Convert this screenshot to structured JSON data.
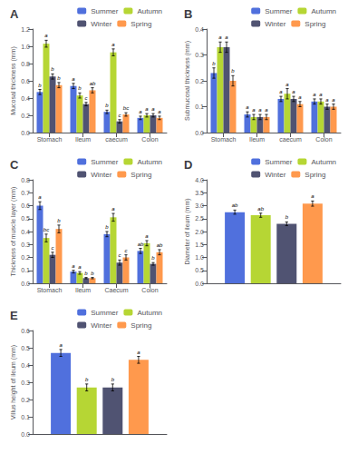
{
  "chart_data": [
    {
      "type": "bar",
      "title": "A",
      "y_label": "Mucosal thickness (mm)",
      "categories": [
        "Stomach",
        "Ileum",
        "caecum",
        "Colon"
      ],
      "series": [
        {
          "name": "Summer",
          "values": [
            0.47,
            0.54,
            0.24,
            0.17
          ],
          "errors": [
            0.03,
            0.03,
            0.02,
            0.02
          ],
          "letters": [
            "b",
            "a",
            "b",
            "a"
          ]
        },
        {
          "name": "Autumn",
          "values": [
            1.03,
            0.43,
            0.93,
            0.2
          ],
          "errors": [
            0.04,
            0.03,
            0.04,
            0.02
          ],
          "letters": [
            "a",
            "b",
            "a",
            "a"
          ]
        },
        {
          "name": "Winter",
          "values": [
            0.65,
            0.33,
            0.13,
            0.2
          ],
          "errors": [
            0.03,
            0.02,
            0.02,
            0.02
          ],
          "letters": [
            "b",
            "c",
            "c",
            "a"
          ]
        },
        {
          "name": "Spring",
          "values": [
            0.55,
            0.49,
            0.21,
            0.17
          ],
          "errors": [
            0.03,
            0.03,
            0.02,
            0.02
          ],
          "letters": [
            "b",
            "ab",
            "bc",
            "a"
          ]
        }
      ],
      "ylim": [
        0,
        1.2
      ],
      "yticks": [
        {
          "value": 0,
          "label": "0.0"
        },
        0.2,
        0.4,
        0.6,
        0.8,
        {
          "value": 1,
          "label": "1.0"
        },
        1.2
      ],
      "grid": false,
      "legend": "upper right"
    },
    {
      "type": "bar",
      "title": "B",
      "y_label": "Submucosal thickness (mm)",
      "categories": [
        "Stomach",
        "Ileum",
        "caecum",
        "Colon"
      ],
      "series": [
        {
          "name": "Summer",
          "values": [
            0.23,
            0.07,
            0.13,
            0.12
          ],
          "errors": [
            0.02,
            0.01,
            0.01,
            0.01
          ],
          "letters": [
            "b",
            "a",
            "a",
            "a"
          ]
        },
        {
          "name": "Autumn",
          "values": [
            0.33,
            0.06,
            0.15,
            0.12
          ],
          "errors": [
            0.02,
            0.01,
            0.02,
            0.01
          ],
          "letters": [
            "a",
            "a",
            "a",
            "a"
          ]
        },
        {
          "name": "Winter",
          "values": [
            0.33,
            0.06,
            0.13,
            0.1
          ],
          "errors": [
            0.02,
            0.01,
            0.01,
            0.01
          ],
          "letters": [
            "a",
            "a",
            "a",
            "a"
          ]
        },
        {
          "name": "Spring",
          "values": [
            0.2,
            0.06,
            0.11,
            0.1
          ],
          "errors": [
            0.02,
            0.01,
            0.01,
            0.01
          ],
          "letters": [
            "b",
            "a",
            "a",
            "a"
          ]
        }
      ],
      "ylim": [
        0,
        0.4
      ],
      "yticks": [
        {
          "value": 0,
          "label": "0.0"
        },
        0.1,
        0.2,
        0.3,
        0.4
      ],
      "grid": false,
      "legend": "upper right"
    },
    {
      "type": "bar",
      "title": "C",
      "y_label": "Thickness of muscle layer (mm)",
      "categories": [
        "Stomach",
        "Ileum",
        "Caecum",
        "Colon"
      ],
      "series": [
        {
          "name": "Summer",
          "values": [
            0.6,
            0.09,
            0.38,
            0.25
          ],
          "errors": [
            0.03,
            0.01,
            0.02,
            0.02
          ],
          "letters": [
            "a",
            "a",
            "b",
            "ab"
          ]
        },
        {
          "name": "Autumn",
          "values": [
            0.35,
            0.08,
            0.51,
            0.31
          ],
          "errors": [
            0.03,
            0.01,
            0.03,
            0.02
          ],
          "letters": [
            "bc",
            "a",
            "a",
            "a"
          ]
        },
        {
          "name": "Winter",
          "values": [
            0.22,
            0.04,
            0.16,
            0.15
          ],
          "errors": [
            0.02,
            0.005,
            0.02,
            0.01
          ],
          "letters": [
            "c",
            "b",
            "c",
            "b"
          ]
        },
        {
          "name": "Spring",
          "values": [
            0.42,
            0.04,
            0.2,
            0.24
          ],
          "errors": [
            0.03,
            0.005,
            0.02,
            0.02
          ],
          "letters": [
            "b",
            "b",
            "c",
            "ab"
          ]
        }
      ],
      "ylim": [
        0,
        0.8
      ],
      "yticks": [
        {
          "value": 0,
          "label": "0.0"
        },
        0.1,
        0.2,
        0.3,
        0.4,
        0.5,
        0.6,
        0.7,
        0.8
      ],
      "grid": false,
      "legend": "upper right"
    },
    {
      "type": "bar",
      "title": "D",
      "y_label": "Diameter of ileum (mm)",
      "categories": [
        null
      ],
      "series": [
        {
          "name": "Summer",
          "values": [
            2.75
          ],
          "errors": [
            0.08
          ],
          "letters": [
            "ab"
          ]
        },
        {
          "name": "Autumn",
          "values": [
            2.63
          ],
          "errors": [
            0.08
          ],
          "letters": [
            "ab"
          ]
        },
        {
          "name": "Winter",
          "values": [
            2.3
          ],
          "errors": [
            0.07
          ],
          "letters": [
            "b"
          ]
        },
        {
          "name": "Spring",
          "values": [
            3.08
          ],
          "errors": [
            0.1
          ],
          "letters": [
            "a"
          ]
        }
      ],
      "ylim": [
        0,
        4.0
      ],
      "yticks": [
        {
          "value": 0,
          "label": "0.0"
        },
        0.5,
        {
          "value": 1,
          "label": "1.0"
        },
        1.5,
        {
          "value": 2,
          "label": "2.0"
        },
        2.5,
        {
          "value": 3,
          "label": "3.0"
        },
        3.5,
        {
          "value": 4,
          "label": "4.0"
        }
      ],
      "grid": false,
      "legend": "upper right",
      "tick_labels": "y"
    },
    {
      "type": "bar",
      "title": "E",
      "y_label": "Villus height of ileum (mm)",
      "categories": [
        null
      ],
      "series": [
        {
          "name": "Summer",
          "values": [
            0.47
          ],
          "errors": [
            0.02
          ],
          "letters": [
            "a"
          ]
        },
        {
          "name": "Autumn",
          "values": [
            0.27
          ],
          "errors": [
            0.02
          ],
          "letters": [
            "b"
          ]
        },
        {
          "name": "Winter",
          "values": [
            0.27
          ],
          "errors": [
            0.02
          ],
          "letters": [
            "b"
          ]
        },
        {
          "name": "Spring",
          "values": [
            0.43
          ],
          "errors": [
            0.02
          ],
          "letters": [
            "a"
          ]
        }
      ],
      "ylim": [
        0,
        0.6
      ],
      "yticks": [
        {
          "value": 0,
          "label": "0.0"
        },
        0.1,
        0.2,
        0.3,
        0.4,
        0.5,
        0.6
      ],
      "grid": false,
      "legend": "upper right",
      "tick_labels": "y"
    }
  ]
}
